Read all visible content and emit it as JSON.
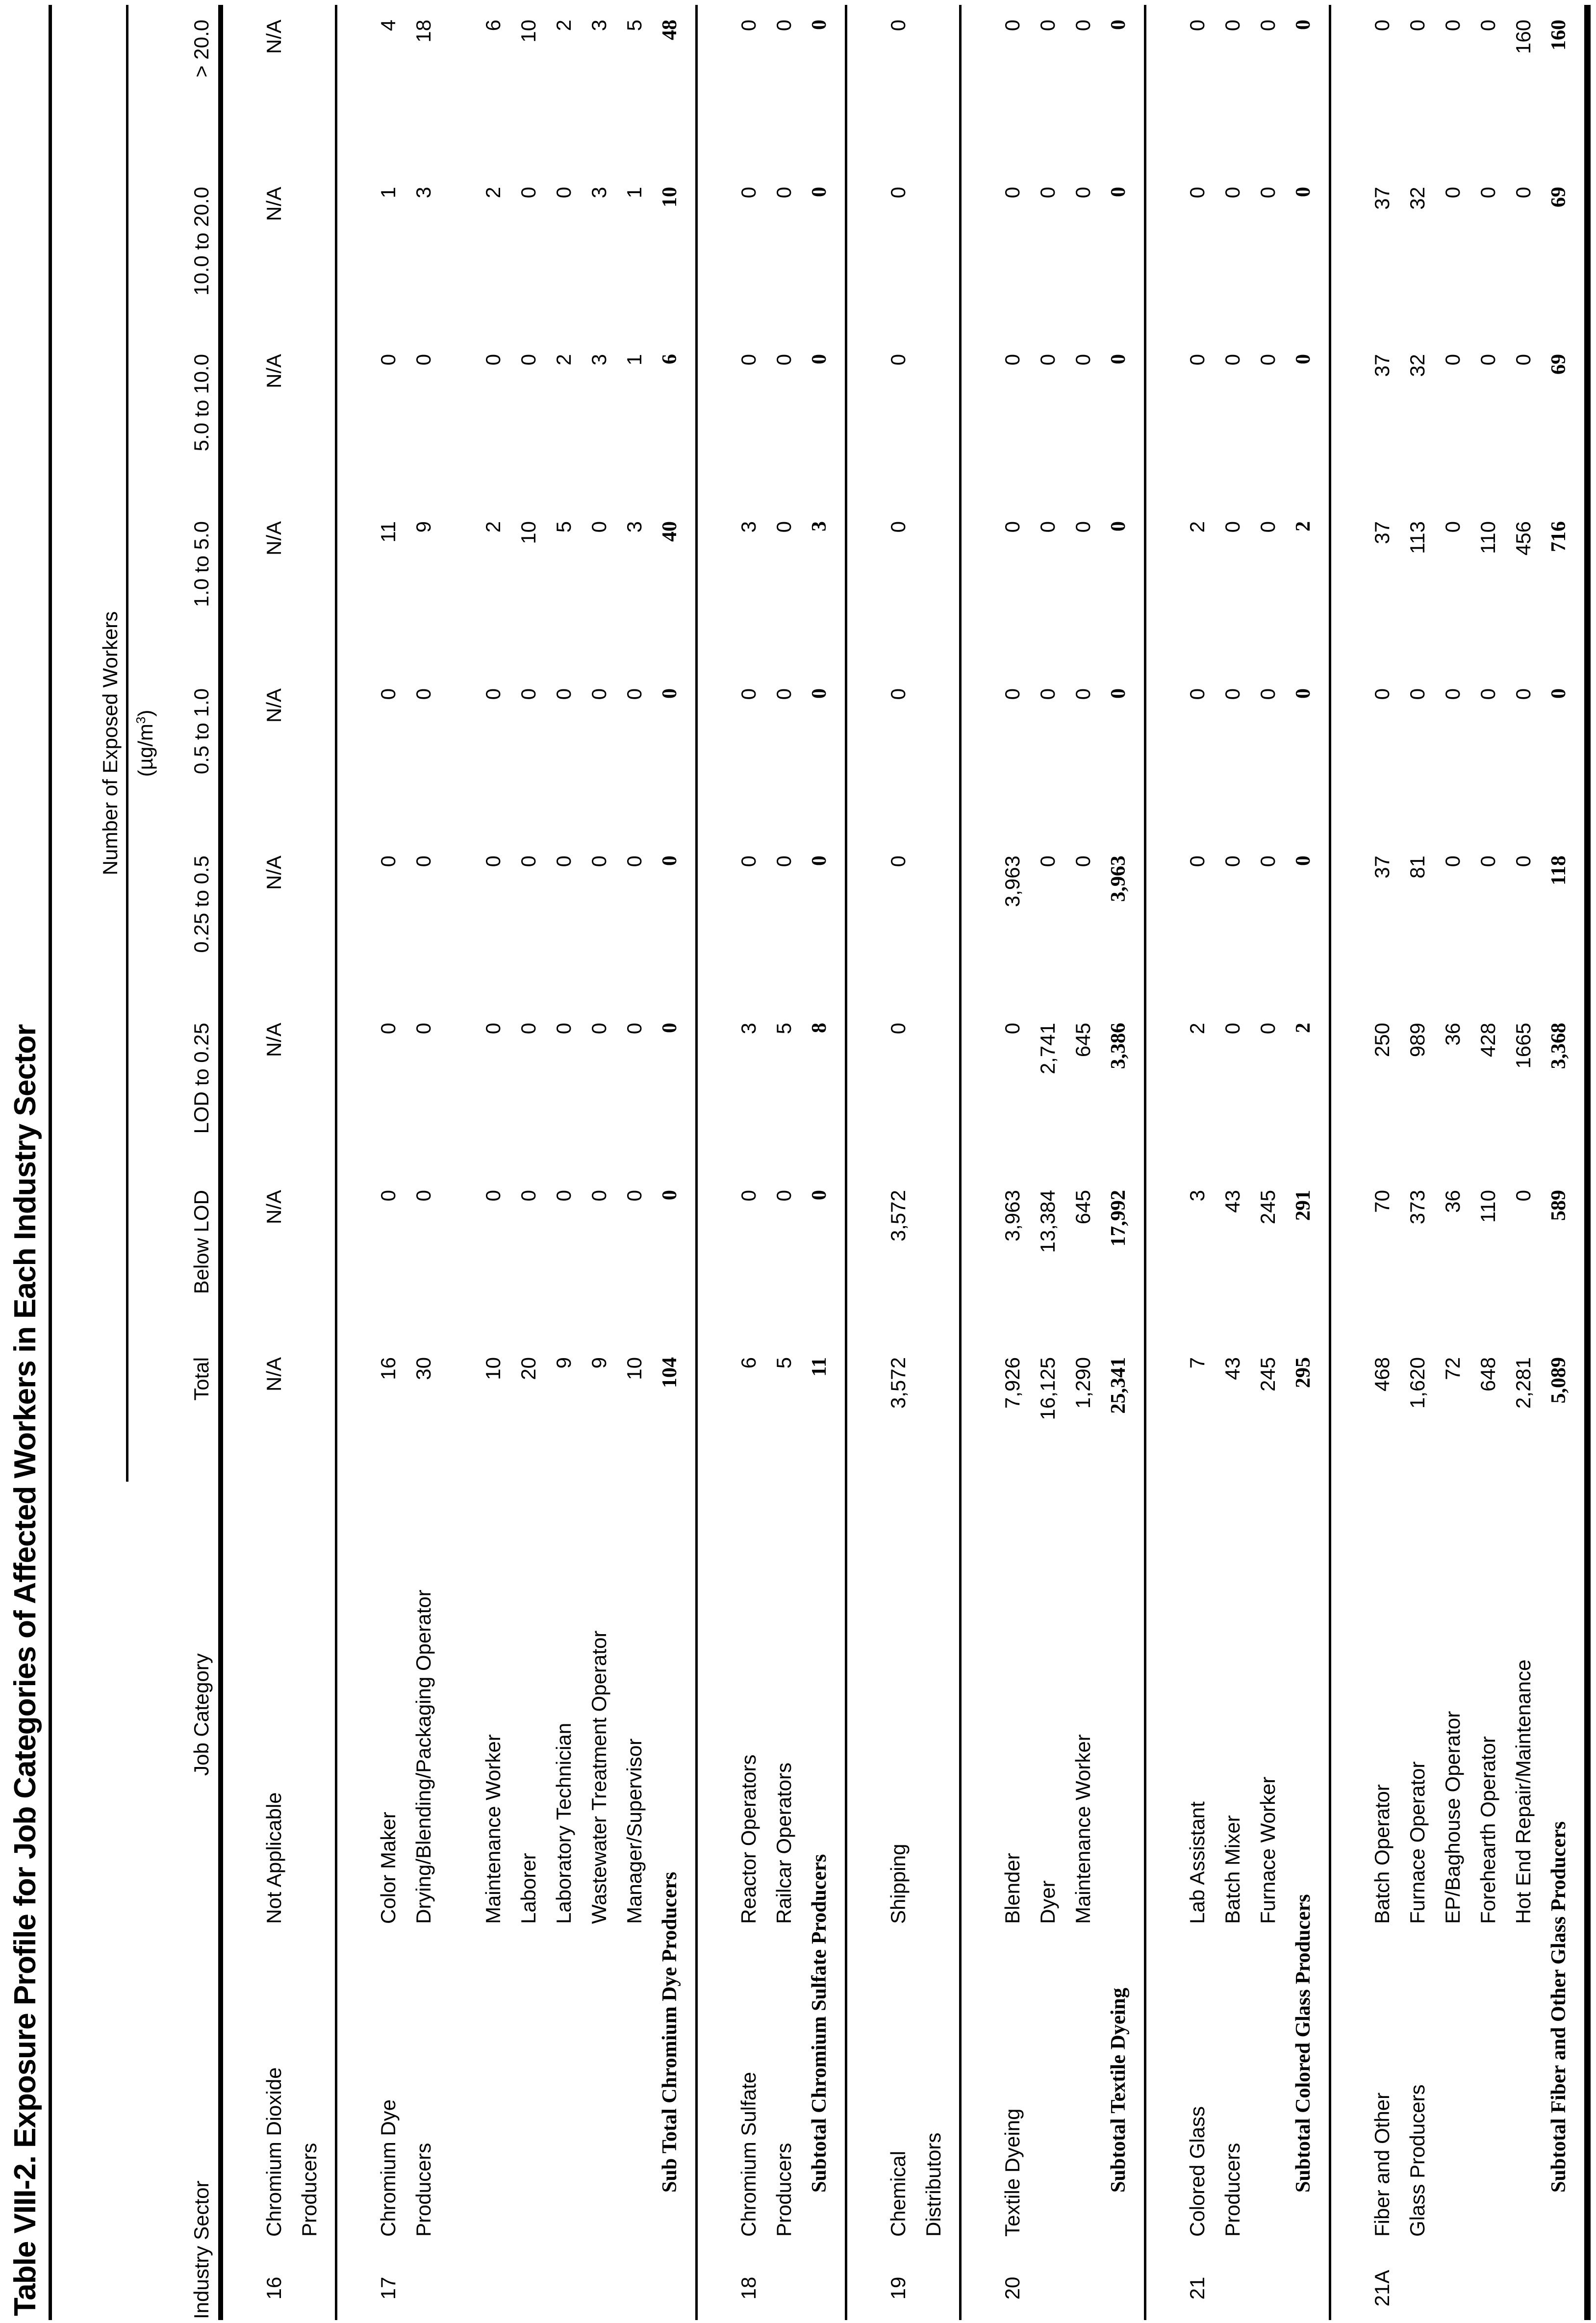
{
  "title": "Table VIII-2. Exposure Profile for Job Categories of Affected Workers in Each Industry Sector",
  "header": {
    "industry_sector": "Industry Sector",
    "job_category": "Job Category",
    "workers_group": "Number of Exposed Workers",
    "unit_base": "(µg/m",
    "unit_sup": "3",
    "unit_close": ")",
    "columns": [
      "Total",
      "Below LOD",
      "LOD to 0.25",
      "0.25 to 0.5",
      "0.5 to 1.0",
      "1.0 to 5.0",
      "5.0 to 10.0",
      "10.0 to 20.0",
      "> 20.0"
    ]
  },
  "groups": [
    {
      "no": "16",
      "name": [
        "Chromium Dioxide",
        "Producers"
      ],
      "rows": [
        {
          "job": "Not Applicable",
          "v": [
            "N/A",
            "N/A",
            "N/A",
            "N/A",
            "N/A",
            "N/A",
            "N/A",
            "N/A",
            "N/A"
          ]
        }
      ]
    },
    {
      "no": "17",
      "name": [
        "Chromium Dye",
        "Producers"
      ],
      "rows": [
        {
          "job": "Color Maker",
          "v": [
            "16",
            "0",
            "0",
            "0",
            "0",
            "11",
            "0",
            "1",
            "4"
          ]
        },
        {
          "job": "Drying/Blending/Packaging Operator",
          "v": [
            "30",
            "0",
            "0",
            "0",
            "0",
            "9",
            "0",
            "3",
            "18"
          ]
        },
        {
          "job": "Maintenance Worker",
          "spacer": true,
          "v": [
            "10",
            "0",
            "0",
            "0",
            "0",
            "2",
            "0",
            "2",
            "6"
          ]
        },
        {
          "job": "Laborer",
          "v": [
            "20",
            "0",
            "0",
            "0",
            "0",
            "10",
            "0",
            "0",
            "10"
          ]
        },
        {
          "job": "Laboratory Technician",
          "v": [
            "9",
            "0",
            "0",
            "0",
            "0",
            "5",
            "2",
            "0",
            "2"
          ]
        },
        {
          "job": "Wastewater Treatment Operator",
          "v": [
            "9",
            "0",
            "0",
            "0",
            "0",
            "0",
            "3",
            "3",
            "3"
          ]
        },
        {
          "job": "Manager/Supervisor",
          "v": [
            "10",
            "0",
            "0",
            "0",
            "0",
            "3",
            "1",
            "1",
            "5"
          ]
        },
        {
          "job": "Sub Total Chromium Dye Producers",
          "bold": true,
          "v": [
            "104",
            "0",
            "0",
            "0",
            "0",
            "40",
            "6",
            "10",
            "48"
          ]
        }
      ]
    },
    {
      "no": "18",
      "name": [
        "Chromium Sulfate",
        "Producers"
      ],
      "rows": [
        {
          "job": "Reactor Operators",
          "v": [
            "6",
            "0",
            "3",
            "0",
            "0",
            "3",
            "0",
            "0",
            "0"
          ]
        },
        {
          "job": "Railcar Operators",
          "v": [
            "5",
            "0",
            "5",
            "0",
            "0",
            "0",
            "0",
            "0",
            "0"
          ]
        },
        {
          "job": "Subtotal Chromium Sulfate Producers",
          "bold": true,
          "v": [
            "11",
            "0",
            "8",
            "0",
            "0",
            "3",
            "0",
            "0",
            "0"
          ]
        }
      ]
    },
    {
      "no": "19",
      "name": [
        "Chemical",
        "Distributors"
      ],
      "rows": [
        {
          "job": "Shipping",
          "v": [
            "3,572",
            "3,572",
            "0",
            "0",
            "0",
            "0",
            "0",
            "0",
            "0"
          ]
        }
      ]
    },
    {
      "no": "20",
      "name": [
        "Textile Dyeing"
      ],
      "rows": [
        {
          "job": "Blender",
          "v": [
            "7,926",
            "3,963",
            "0",
            "3,963",
            "0",
            "0",
            "0",
            "0",
            "0"
          ]
        },
        {
          "job": "Dyer",
          "v": [
            "16,125",
            "13,384",
            "2,741",
            "0",
            "0",
            "0",
            "0",
            "0",
            "0"
          ]
        },
        {
          "job": "Maintenance Worker",
          "v": [
            "1,290",
            "645",
            "645",
            "0",
            "0",
            "0",
            "0",
            "0",
            "0"
          ]
        },
        {
          "job": "Subtotal Textile Dyeing",
          "bold": true,
          "v": [
            "25,341",
            "17,992",
            "3,386",
            "3,963",
            "0",
            "0",
            "0",
            "0",
            "0"
          ]
        }
      ]
    },
    {
      "no": "21",
      "name": [
        "Colored Glass",
        "Producers"
      ],
      "rows": [
        {
          "job": "Lab Assistant",
          "v": [
            "7",
            "3",
            "2",
            "0",
            "0",
            "2",
            "0",
            "0",
            "0"
          ]
        },
        {
          "job": "Batch Mixer",
          "v": [
            "43",
            "43",
            "0",
            "0",
            "0",
            "0",
            "0",
            "0",
            "0"
          ]
        },
        {
          "job": "Furnace Worker",
          "v": [
            "245",
            "245",
            "0",
            "0",
            "0",
            "0",
            "0",
            "0",
            "0"
          ]
        },
        {
          "job": "Subtotal Colored Glass Producers",
          "bold": true,
          "v": [
            "295",
            "291",
            "2",
            "0",
            "0",
            "2",
            "0",
            "0",
            "0"
          ]
        }
      ]
    },
    {
      "no": "21A",
      "name": [
        "Fiber and Other",
        "Glass Producers"
      ],
      "rows": [
        {
          "job": "Batch Operator",
          "v": [
            "468",
            "70",
            "250",
            "37",
            "0",
            "37",
            "37",
            "37",
            "0"
          ]
        },
        {
          "job": "Furnace Operator",
          "v": [
            "1,620",
            "373",
            "989",
            "81",
            "0",
            "113",
            "32",
            "32",
            "0"
          ]
        },
        {
          "job": "EP/Baghouse Operator",
          "v": [
            "72",
            "36",
            "36",
            "0",
            "0",
            "0",
            "0",
            "0",
            "0"
          ]
        },
        {
          "job": "Forehearth Operator",
          "v": [
            "648",
            "110",
            "428",
            "0",
            "0",
            "110",
            "0",
            "0",
            "0"
          ]
        },
        {
          "job": "Hot End Repair/Maintenance",
          "v": [
            "2,281",
            "0",
            "1665",
            "0",
            "0",
            "456",
            "0",
            "0",
            "160"
          ]
        },
        {
          "job": "Subtotal Fiber and Other Glass Producers",
          "bold": true,
          "v": [
            "5,089",
            "589",
            "3,368",
            "118",
            "0",
            "716",
            "69",
            "69",
            "160"
          ]
        }
      ]
    }
  ]
}
